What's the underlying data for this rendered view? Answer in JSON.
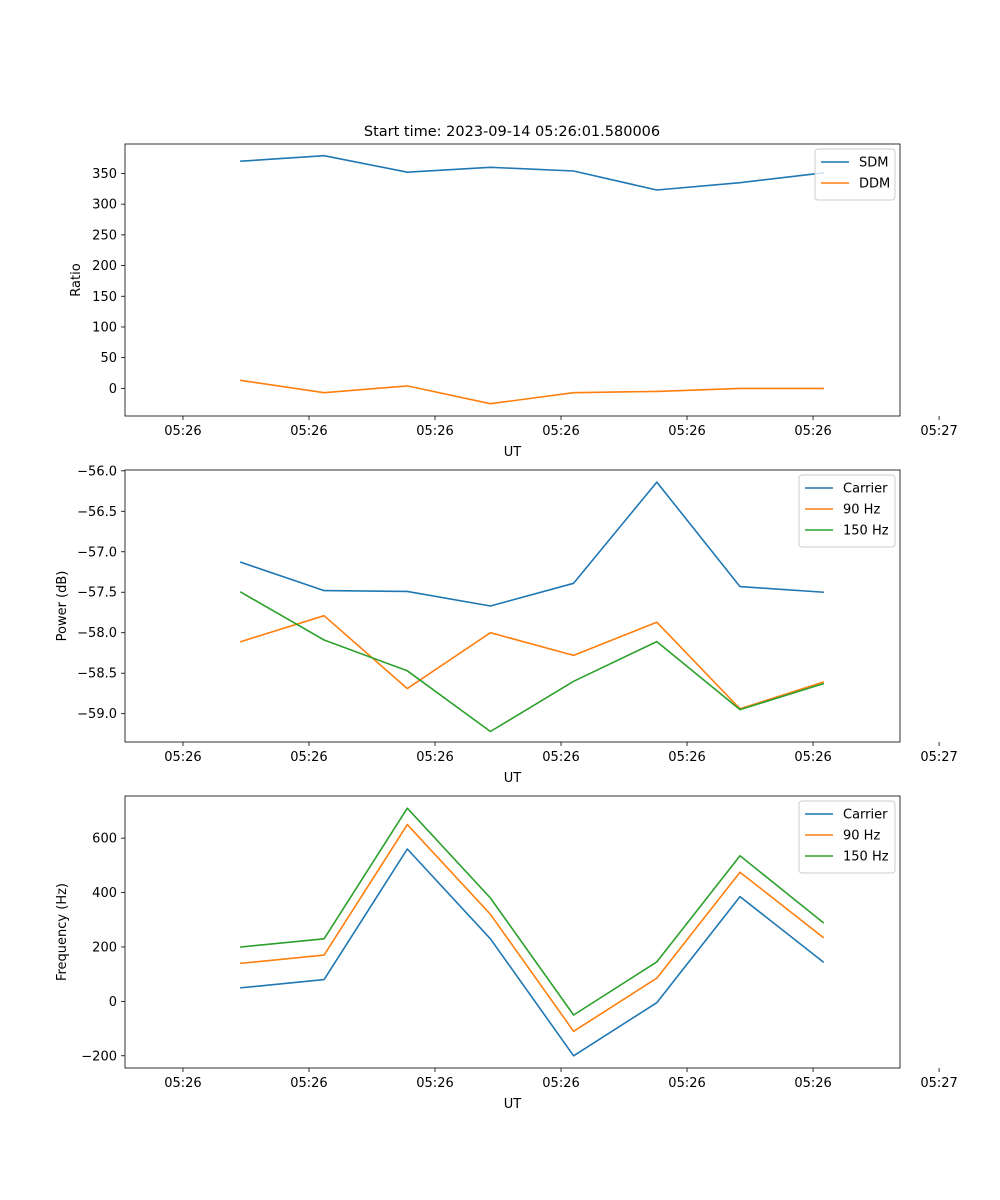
{
  "figure_title": "Start time: 2023-09-14 05:26:01.580006",
  "colors": {
    "c0": "#1f77b4",
    "c1": "#ff7f0e",
    "c2": "#2ca02c"
  },
  "chart_data": [
    {
      "type": "line",
      "title": "",
      "xlabel": "UT",
      "ylabel": "Ratio",
      "xlim": [
        -0.46,
        5.69
      ],
      "ylim": [
        -45,
        398
      ],
      "xticks": [
        0,
        1,
        2,
        3,
        4,
        5,
        6
      ],
      "xtick_labels": [
        "05:26",
        "05:26",
        "05:26",
        "05:26",
        "05:26",
        "05:26",
        "05:27"
      ],
      "yticks": [
        0,
        50,
        100,
        150,
        200,
        250,
        300,
        350
      ],
      "ytick_labels": [
        "0",
        "50",
        "100",
        "150",
        "200",
        "250",
        "300",
        "350"
      ],
      "legend_position": "top-right",
      "x": [
        0.46,
        1.12,
        1.78,
        2.44,
        3.1,
        3.76,
        4.42,
        5.08
      ],
      "series": [
        {
          "name": "SDM",
          "color": "#1f77b4",
          "values": [
            370,
            379,
            352,
            360,
            354,
            323,
            335,
            351
          ]
        },
        {
          "name": "DDM",
          "color": "#ff7f0e",
          "values": [
            13,
            -7,
            4,
            -25,
            -7,
            -5,
            0,
            0
          ]
        }
      ]
    },
    {
      "type": "line",
      "title": "",
      "xlabel": "UT",
      "ylabel": "Power (dB)",
      "xlim": [
        -0.46,
        5.69
      ],
      "ylim": [
        -59.35,
        -55.99
      ],
      "xticks": [
        0,
        1,
        2,
        3,
        4,
        5,
        6
      ],
      "xtick_labels": [
        "05:26",
        "05:26",
        "05:26",
        "05:26",
        "05:26",
        "05:26",
        "05:27"
      ],
      "yticks": [
        -59.0,
        -58.5,
        -58.0,
        -57.5,
        -57.0,
        -56.5,
        -56.0
      ],
      "ytick_labels": [
        "−59.0",
        "−58.5",
        "−58.0",
        "−57.5",
        "−57.0",
        "−56.5",
        "−56.0"
      ],
      "legend_position": "top-right",
      "x": [
        0.46,
        1.12,
        1.78,
        2.44,
        3.1,
        3.76,
        4.42,
        5.08
      ],
      "series": [
        {
          "name": "Carrier",
          "color": "#1f77b4",
          "values": [
            -57.13,
            -57.48,
            -57.49,
            -57.67,
            -57.39,
            -56.14,
            -57.43,
            -57.5
          ]
        },
        {
          "name": "90 Hz",
          "color": "#ff7f0e",
          "values": [
            -58.11,
            -57.79,
            -58.69,
            -58.0,
            -58.28,
            -57.87,
            -58.94,
            -58.61
          ]
        },
        {
          "name": "150 Hz",
          "color": "#2ca02c",
          "values": [
            -57.5,
            -58.09,
            -58.47,
            -59.22,
            -58.6,
            -58.11,
            -58.95,
            -58.63
          ]
        }
      ]
    },
    {
      "type": "line",
      "title": "",
      "xlabel": "UT",
      "ylabel": "Frequency (Hz)",
      "xlim": [
        -0.46,
        5.69
      ],
      "ylim": [
        -245,
        755
      ],
      "xticks": [
        0,
        1,
        2,
        3,
        4,
        5,
        6
      ],
      "xtick_labels": [
        "05:26",
        "05:26",
        "05:26",
        "05:26",
        "05:26",
        "05:26",
        "05:27"
      ],
      "yticks": [
        -200,
        0,
        200,
        400,
        600
      ],
      "ytick_labels": [
        "−200",
        "0",
        "200",
        "400",
        "600"
      ],
      "legend_position": "top-right",
      "x": [
        0.46,
        1.12,
        1.78,
        2.44,
        3.1,
        3.76,
        4.42,
        5.08
      ],
      "series": [
        {
          "name": "Carrier",
          "color": "#1f77b4",
          "values": [
            50,
            80,
            560,
            230,
            -200,
            -5,
            385,
            145
          ]
        },
        {
          "name": "90 Hz",
          "color": "#ff7f0e",
          "values": [
            140,
            170,
            650,
            320,
            -110,
            85,
            475,
            235
          ]
        },
        {
          "name": "150 Hz",
          "color": "#2ca02c",
          "values": [
            200,
            230,
            710,
            380,
            -50,
            145,
            535,
            290
          ]
        }
      ]
    }
  ]
}
